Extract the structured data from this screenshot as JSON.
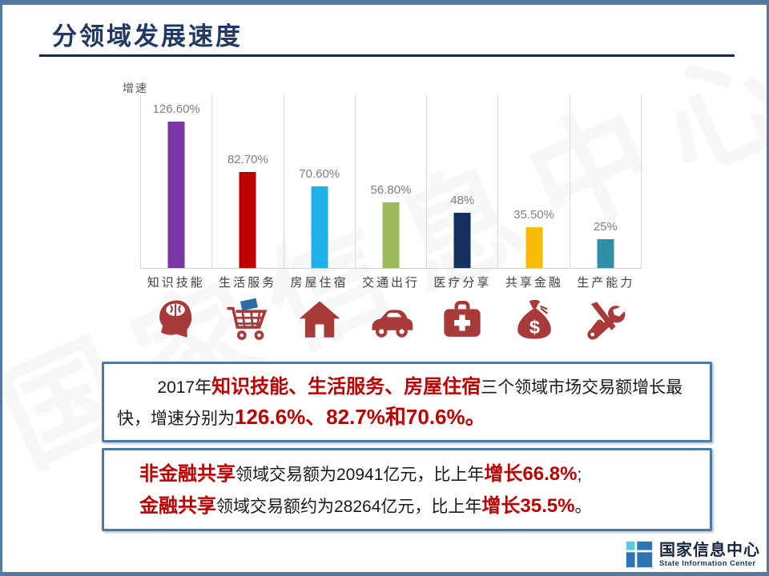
{
  "slide": {
    "title": "分领域发展速度",
    "title_color": "#1f3864",
    "frame_color": "#54799e"
  },
  "chart_data": {
    "type": "bar",
    "title": "",
    "ylabel": "增速",
    "xlabel": "",
    "categories": [
      "知识技能",
      "生活服务",
      "房屋住宿",
      "交通出行",
      "医疗分享",
      "共享金融",
      "生产能力"
    ],
    "values": [
      126.6,
      82.7,
      70.6,
      56.8,
      48,
      35.5,
      25
    ],
    "value_labels": [
      "126.60%",
      "82.70%",
      "70.60%",
      "56.80%",
      "48%",
      "35.50%",
      "25%"
    ],
    "bar_colors": [
      "#7b35a5",
      "#c00000",
      "#20b0e8",
      "#9cba5a",
      "#14305f",
      "#fbbc09",
      "#2e8fa6"
    ],
    "ylim": [
      0,
      150
    ],
    "grid": "vertical-category-separators",
    "legend": "none",
    "category_icons": [
      "knowledge-head-icon",
      "shopping-cart-icon",
      "house-icon",
      "car-icon",
      "first-aid-kit-icon",
      "money-bag-icon",
      "tools-icon"
    ]
  },
  "callouts": {
    "accent_red": "#c00000",
    "border_color": "#4d7aa5",
    "box1": {
      "segments": [
        {
          "t": "2017年",
          "s": ""
        },
        {
          "t": "知识技能、生活服务、房屋住宿",
          "s": "seg-red"
        },
        {
          "t": "三个领域市场交易额增长最快，增速分别为",
          "s": ""
        },
        {
          "t": "126.6%、82.7%和70.6%。",
          "s": "seg-num"
        }
      ]
    },
    "box2": {
      "lines": [
        [
          {
            "t": "非金融共享",
            "s": "seg-red"
          },
          {
            "t": "领域交易额为20941亿元，比上年",
            "s": ""
          },
          {
            "t": "增长66.8%",
            "s": "seg-red"
          },
          {
            "t": ";",
            "s": ""
          }
        ],
        [
          {
            "t": "金融共享",
            "s": "seg-red"
          },
          {
            "t": "领域交易额约为28264亿元，比上年",
            "s": ""
          },
          {
            "t": "增长35.5%",
            "s": "seg-red"
          },
          {
            "t": "。",
            "s": ""
          }
        ]
      ]
    }
  },
  "footer": {
    "logo_cn": "国家信息中心",
    "logo_en": "State Information Center",
    "logo_blue": "#2e75b6",
    "logo_cyan": "#5bc8e8"
  },
  "watermark": "国家信息中心"
}
